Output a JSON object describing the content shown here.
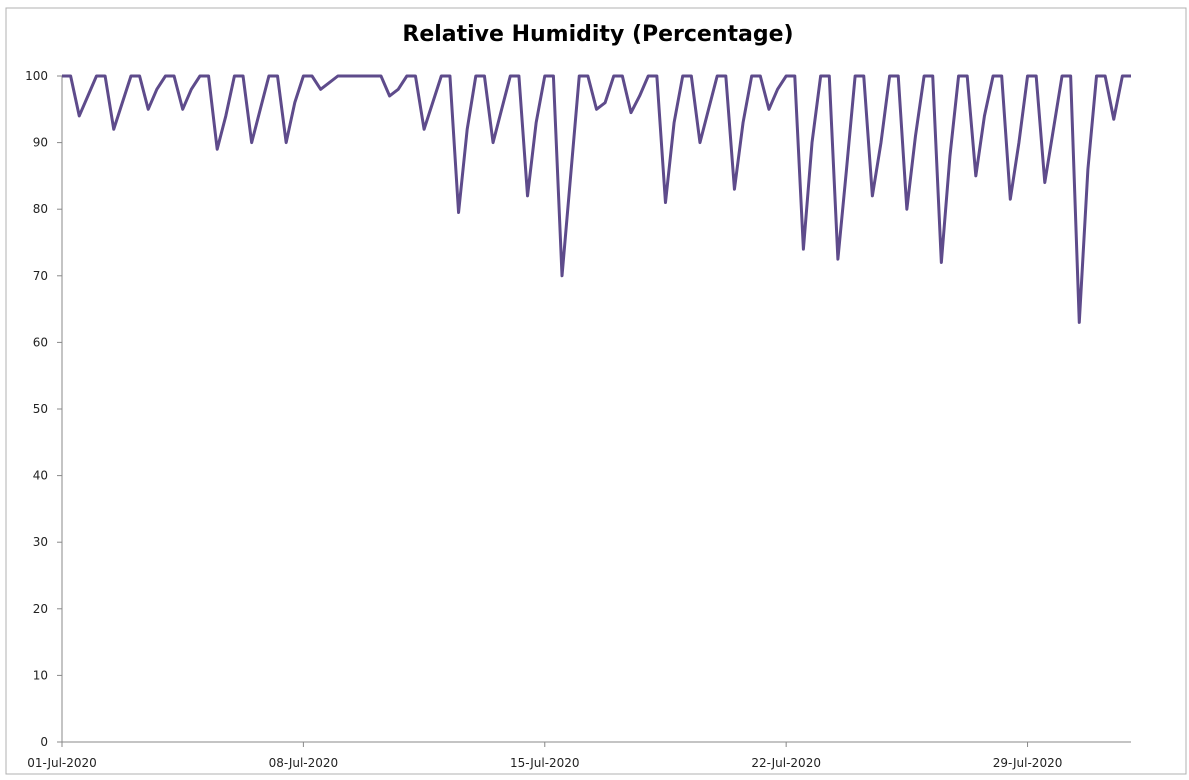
{
  "chart_data": {
    "type": "line",
    "title": "Relative Humidity  (Percentage)",
    "categories": [
      "01-Jul-2020",
      null,
      null,
      null,
      null,
      null,
      null,
      null,
      null,
      null,
      null,
      null,
      null,
      null,
      null,
      null,
      null,
      null,
      null,
      null,
      null,
      null,
      null,
      null,
      null,
      null,
      null,
      null,
      "08-Jul-2020",
      null,
      null,
      null,
      null,
      null,
      null,
      null,
      null,
      null,
      null,
      null,
      null,
      null,
      null,
      null,
      null,
      null,
      null,
      null,
      null,
      null,
      null,
      null,
      null,
      null,
      null,
      null,
      "15-Jul-2020",
      null,
      null,
      null,
      null,
      null,
      null,
      null,
      null,
      null,
      null,
      null,
      null,
      null,
      null,
      null,
      null,
      null,
      null,
      null,
      null,
      null,
      null,
      null,
      null,
      null,
      null,
      null,
      "22-Jul-2020",
      null,
      null,
      null,
      null,
      null,
      null,
      null,
      null,
      null,
      null,
      null,
      null,
      null,
      null,
      null,
      null,
      null,
      null,
      null,
      null,
      null,
      null,
      null,
      null,
      null,
      null,
      null,
      "29-Jul-2020",
      null,
      null,
      null,
      null,
      null,
      null,
      null,
      null,
      null,
      null,
      null,
      null
    ],
    "series": [
      {
        "name": "Relative Humidity",
        "color": "#5e4b8b",
        "values": [
          100,
          100,
          94,
          97,
          100,
          100,
          92,
          96,
          100,
          100,
          95,
          98,
          100,
          100,
          95,
          98,
          100,
          100,
          89,
          94,
          100,
          100,
          90,
          95,
          100,
          100,
          90,
          96,
          100,
          100,
          98,
          99,
          100,
          100,
          100,
          100,
          100,
          100,
          97,
          98,
          100,
          100,
          92,
          96,
          100,
          100,
          79.5,
          92,
          100,
          100,
          90,
          95,
          100,
          100,
          82,
          93,
          100,
          100,
          70,
          85,
          100,
          100,
          95,
          96,
          100,
          100,
          94.5,
          97,
          100,
          100,
          81,
          93,
          100,
          100,
          90,
          95,
          100,
          100,
          83,
          93,
          100,
          100,
          95,
          98,
          100,
          100,
          74,
          90,
          100,
          100,
          72.5,
          86,
          100,
          100,
          82,
          90,
          100,
          100,
          80,
          91,
          100,
          100,
          72,
          88,
          100,
          100,
          85,
          94,
          100,
          100,
          81.5,
          90,
          100,
          100,
          84,
          92,
          100,
          100,
          63,
          86,
          100,
          100,
          93.5,
          100,
          100
        ]
      }
    ],
    "ylim": [
      0,
      100
    ],
    "yticks": [
      0,
      10,
      20,
      30,
      40,
      50,
      60,
      70,
      80,
      90,
      100
    ],
    "grid": false
  }
}
